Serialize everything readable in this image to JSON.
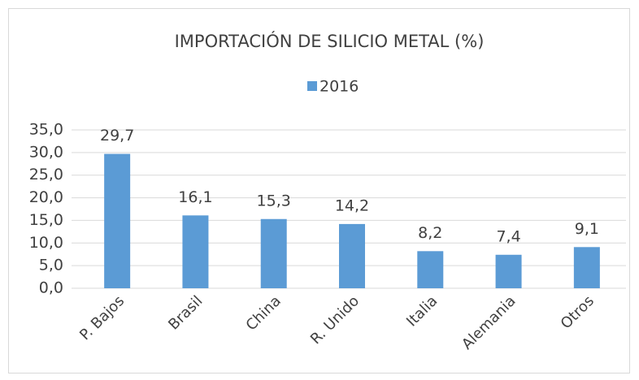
{
  "chart_data": {
    "type": "bar",
    "title": "IMPORTACIÓN DE SILICIO METAL (%)",
    "categories": [
      "P. Bajos",
      "Brasil",
      "China",
      "R. Unido",
      "Italia",
      "Alemania",
      "Otros"
    ],
    "series": [
      {
        "name": "2016",
        "color": "#5b9bd5",
        "values": [
          29.7,
          16.1,
          15.3,
          14.2,
          8.2,
          7.4,
          9.1
        ],
        "value_labels": [
          "29,7",
          "16,1",
          "15,3",
          "14,2",
          "8,2",
          "7,4",
          "9,1"
        ]
      }
    ],
    "ylim": [
      0,
      35
    ],
    "yticks": [
      {
        "value": 0,
        "label": "0,0"
      },
      {
        "value": 5,
        "label": "5,0"
      },
      {
        "value": 10,
        "label": "10,0"
      },
      {
        "value": 15,
        "label": "15,0"
      },
      {
        "value": 20,
        "label": "20,0"
      },
      {
        "value": 25,
        "label": "25,0"
      },
      {
        "value": 30,
        "label": "30,0"
      },
      {
        "value": 35,
        "label": "35,0"
      }
    ],
    "grid": true,
    "legend": "top"
  }
}
